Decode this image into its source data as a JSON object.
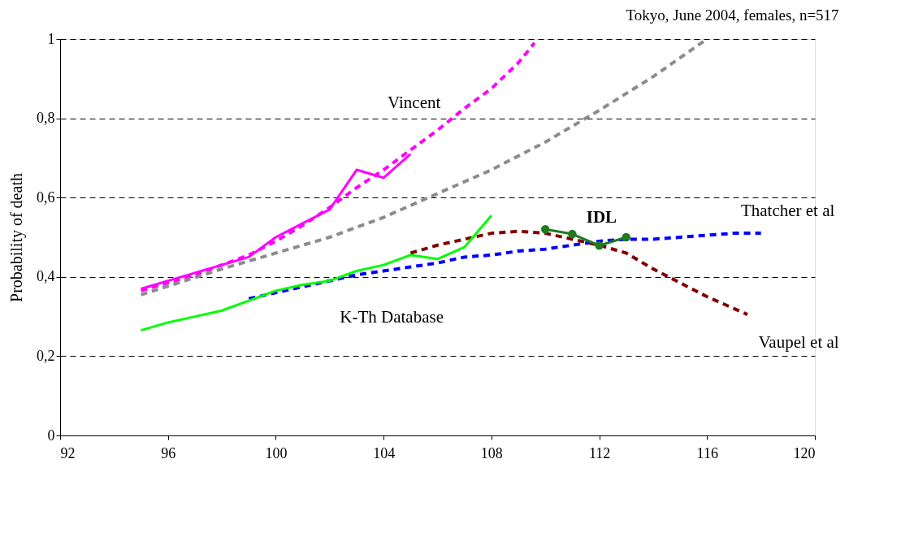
{
  "chart_data": {
    "type": "line",
    "title": "Tokyo, June 2004, females, n=517",
    "ylabel": "Probability of death",
    "xlim": [
      92,
      120
    ],
    "xticks": [
      92,
      96,
      100,
      104,
      108,
      112,
      116,
      120
    ],
    "ylim": [
      0,
      1
    ],
    "yticks": [
      0,
      {
        "value": 0.2,
        "label": "0,2"
      },
      {
        "value": 0.4,
        "label": "0,4"
      },
      {
        "value": 0.6,
        "label": "0,6"
      },
      {
        "value": 0.8,
        "label": "0,8"
      },
      1
    ],
    "grid": "y",
    "series": [
      {
        "name": "Vincent",
        "color": "#ff00ff",
        "line_style": "dashed",
        "x": [
          95,
          96,
          97,
          98,
          99,
          100,
          101,
          102,
          103,
          104,
          105,
          106,
          107,
          108,
          109,
          109.6
        ],
        "values": [
          0.365,
          0.385,
          0.405,
          0.43,
          0.455,
          0.49,
          0.53,
          0.575,
          0.625,
          0.67,
          0.72,
          0.77,
          0.825,
          0.875,
          0.94,
          0.99
        ]
      },
      {
        "color": "#8c8c8c",
        "line_style": "dashed",
        "x": [
          95,
          98,
          100,
          102,
          104,
          106,
          108,
          110,
          112,
          114,
          116
        ],
        "values": [
          0.355,
          0.42,
          0.46,
          0.5,
          0.55,
          0.61,
          0.67,
          0.74,
          0.82,
          0.905,
          1.0
        ]
      },
      {
        "color": "#ff00ff",
        "line_style": "solid",
        "x": [
          95,
          96,
          97,
          98,
          99,
          100,
          101,
          102,
          103,
          104,
          105
        ],
        "values": [
          0.37,
          0.39,
          0.41,
          0.43,
          0.45,
          0.5,
          0.535,
          0.57,
          0.67,
          0.65,
          0.71
        ]
      },
      {
        "name": "Thatcher et al",
        "color": "#0000ff",
        "line_style": "dashed",
        "x": [
          99,
          100,
          101,
          102,
          103,
          104,
          105,
          106,
          107,
          108,
          109,
          110,
          111,
          112,
          113,
          114,
          115,
          116,
          117,
          118
        ],
        "values": [
          0.345,
          0.36,
          0.375,
          0.39,
          0.405,
          0.415,
          0.425,
          0.435,
          0.45,
          0.455,
          0.465,
          0.47,
          0.48,
          0.49,
          0.495,
          0.495,
          0.5,
          0.505,
          0.51,
          0.51
        ]
      },
      {
        "name": "Vaupel et al",
        "color": "#800000",
        "line_style": "dashed",
        "x": [
          105,
          106,
          107,
          108,
          109,
          110,
          111,
          112,
          113,
          114,
          115,
          116,
          117,
          117.5
        ],
        "values": [
          0.46,
          0.48,
          0.495,
          0.51,
          0.515,
          0.51,
          0.495,
          0.48,
          0.46,
          0.42,
          0.385,
          0.35,
          0.32,
          0.305
        ]
      },
      {
        "name": "K-Th Database",
        "color": "#00ff00",
        "line_style": "solid",
        "x": [
          95,
          96,
          97,
          98,
          99,
          100,
          101,
          102,
          103,
          104,
          105,
          106,
          107,
          108
        ],
        "values": [
          0.265,
          0.285,
          0.3,
          0.315,
          0.34,
          0.365,
          0.38,
          0.39,
          0.415,
          0.43,
          0.455,
          0.445,
          0.475,
          0.555
        ]
      },
      {
        "name": "IDL",
        "color": "#1e7b1e",
        "line_style": "solid",
        "marker": "circle",
        "x": [
          110,
          111,
          112,
          113
        ],
        "values": [
          0.52,
          0.508,
          0.479,
          0.5
        ]
      }
    ]
  }
}
